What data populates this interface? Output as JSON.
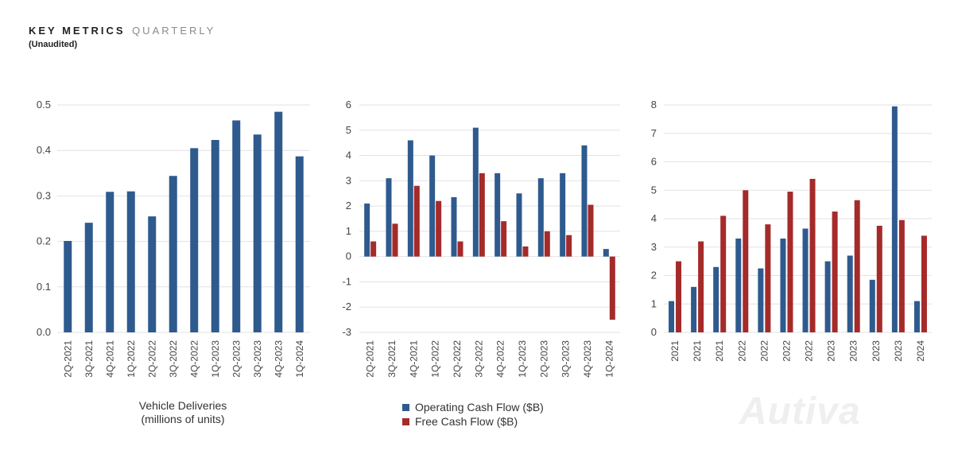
{
  "header": {
    "title": "KEY METRICS",
    "title_accent": "QUARTERLY",
    "subtitle": "(Unaudited)"
  },
  "colors": {
    "blue": "#2e5a8e",
    "red": "#a52a2a",
    "grid": "#e2e2e2"
  },
  "chart_data": [
    {
      "type": "bar",
      "categories": [
        "2Q-2021",
        "3Q-2021",
        "4Q-2021",
        "1Q-2022",
        "2Q-2022",
        "3Q-2022",
        "4Q-2022",
        "1Q-2023",
        "2Q-2023",
        "3Q-2023",
        "4Q-2023",
        "1Q-2024"
      ],
      "series": [
        {
          "name": "Vehicle Deliveries (millions of units)",
          "values": [
            0.201,
            0.241,
            0.309,
            0.31,
            0.255,
            0.344,
            0.405,
            0.423,
            0.466,
            0.435,
            0.485,
            0.387
          ]
        }
      ],
      "ylim": [
        0,
        0.5
      ],
      "yticks": [
        "0.0",
        "0.1",
        "0.2",
        "0.3",
        "0.4",
        "0.5"
      ],
      "caption": [
        "Vehicle Deliveries",
        "(millions of units)"
      ],
      "grid": true
    },
    {
      "type": "bar",
      "categories": [
        "2Q-2021",
        "3Q-2021",
        "4Q-2021",
        "1Q-2022",
        "2Q-2022",
        "3Q-2022",
        "4Q-2022",
        "1Q-2023",
        "2Q-2023",
        "3Q-2023",
        "4Q-2023",
        "1Q-2024"
      ],
      "series": [
        {
          "name": "Operating Cash Flow ($B)",
          "values": [
            2.1,
            3.1,
            4.6,
            4.0,
            2.35,
            5.1,
            3.3,
            2.5,
            3.1,
            3.3,
            4.4,
            0.3
          ]
        },
        {
          "name": "Free Cash Flow ($B)",
          "values": [
            0.6,
            1.3,
            2.8,
            2.2,
            0.6,
            3.3,
            1.4,
            0.4,
            1.0,
            0.85,
            2.05,
            -2.5
          ]
        }
      ],
      "ylim": [
        -3,
        6
      ],
      "yticks": [
        "-3",
        "-2",
        "-1",
        "0",
        "1",
        "2",
        "3",
        "4",
        "5",
        "6"
      ],
      "legend_position": "bottom",
      "grid": true
    },
    {
      "type": "bar",
      "categories": [
        "2Q-2021",
        "3Q-2021",
        "4Q-2021",
        "1Q-2022",
        "2Q-2022",
        "3Q-2022",
        "4Q-2022",
        "1Q-2023",
        "2Q-2023",
        "3Q-2023",
        "4Q-2023",
        "1Q-2024"
      ],
      "tick_labels": [
        "2021",
        "2021",
        "2021",
        "2022",
        "2022",
        "2022",
        "2022",
        "2023",
        "2023",
        "2023",
        "2023",
        "2024"
      ],
      "series": [
        {
          "name": "",
          "values": [
            1.1,
            1.6,
            2.3,
            3.3,
            2.25,
            3.3,
            3.65,
            2.5,
            2.7,
            1.85,
            7.95,
            1.1
          ]
        },
        {
          "name": "",
          "values": [
            2.5,
            3.2,
            4.1,
            5.0,
            3.8,
            4.95,
            5.4,
            4.25,
            4.65,
            3.75,
            3.95,
            3.4
          ]
        }
      ],
      "ylim": [
        0,
        8
      ],
      "yticks": [
        "0",
        "1",
        "2",
        "3",
        "4",
        "5",
        "6",
        "7",
        "8"
      ],
      "grid": true
    }
  ],
  "watermark": "Autiva"
}
